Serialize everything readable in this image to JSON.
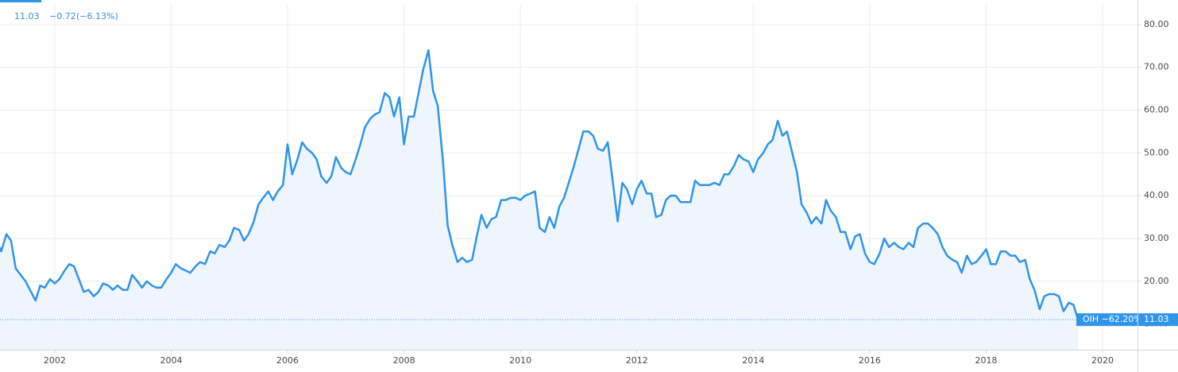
{
  "chart_data": {
    "type": "area",
    "header": {
      "last_price": 11.03,
      "change": "−0.72",
      "change_pct": "(−6.13%)"
    },
    "symbol_label": "OIH −62.20%",
    "color": "#2f95e8",
    "fill_color": "#eef5fd",
    "grid": true,
    "xlim": [
      2001.06,
      2020.6
    ],
    "ylim": [
      4,
      84.8
    ],
    "xticks": [
      2002,
      2004,
      2006,
      2008,
      2010,
      2012,
      2014,
      2016,
      2018,
      2020
    ],
    "yticks": [
      {
        "value": 10,
        "label": "10.00"
      },
      {
        "value": 20,
        "label": "20.00"
      },
      {
        "value": 30,
        "label": "30.00"
      },
      {
        "value": 40,
        "label": "40.00"
      },
      {
        "value": 50,
        "label": "50.00"
      },
      {
        "value": 60,
        "label": "60.00"
      },
      {
        "value": 70,
        "label": "70.00"
      },
      {
        "value": 80,
        "label": "80.00"
      }
    ],
    "x": [
      2001.0,
      2001.08,
      2001.17,
      2001.25,
      2001.33,
      2001.5,
      2001.67,
      2001.75,
      2001.83,
      2001.92,
      2002.0,
      2002.08,
      2002.17,
      2002.25,
      2002.33,
      2002.5,
      2002.58,
      2002.67,
      2002.75,
      2002.83,
      2002.92,
      2003.0,
      2003.08,
      2003.17,
      2003.25,
      2003.33,
      2003.42,
      2003.5,
      2003.58,
      2003.67,
      2003.75,
      2003.83,
      2003.92,
      2004.0,
      2004.08,
      2004.17,
      2004.25,
      2004.33,
      2004.42,
      2004.5,
      2004.58,
      2004.67,
      2004.75,
      2004.83,
      2004.92,
      2005.0,
      2005.08,
      2005.17,
      2005.25,
      2005.33,
      2005.42,
      2005.5,
      2005.58,
      2005.67,
      2005.75,
      2005.83,
      2005.92,
      2006.0,
      2006.08,
      2006.17,
      2006.25,
      2006.33,
      2006.42,
      2006.5,
      2006.58,
      2006.67,
      2006.75,
      2006.83,
      2006.92,
      2007.0,
      2007.08,
      2007.17,
      2007.25,
      2007.33,
      2007.42,
      2007.5,
      2007.58,
      2007.67,
      2007.75,
      2007.83,
      2007.92,
      2008.0,
      2008.08,
      2008.17,
      2008.25,
      2008.33,
      2008.42,
      2008.5,
      2008.58,
      2008.67,
      2008.75,
      2008.83,
      2008.92,
      2009.0,
      2009.08,
      2009.17,
      2009.25,
      2009.33,
      2009.42,
      2009.5,
      2009.58,
      2009.67,
      2009.75,
      2009.83,
      2009.92,
      2010.0,
      2010.08,
      2010.17,
      2010.25,
      2010.33,
      2010.42,
      2010.5,
      2010.58,
      2010.67,
      2010.75,
      2010.83,
      2010.92,
      2011.0,
      2011.08,
      2011.17,
      2011.25,
      2011.33,
      2011.42,
      2011.5,
      2011.58,
      2011.67,
      2011.75,
      2011.83,
      2011.92,
      2012.0,
      2012.08,
      2012.17,
      2012.25,
      2012.33,
      2012.42,
      2012.5,
      2012.58,
      2012.67,
      2012.75,
      2012.83,
      2012.92,
      2013.0,
      2013.08,
      2013.17,
      2013.25,
      2013.33,
      2013.42,
      2013.5,
      2013.58,
      2013.67,
      2013.75,
      2013.83,
      2013.92,
      2014.0,
      2014.08,
      2014.17,
      2014.25,
      2014.33,
      2014.42,
      2014.5,
      2014.58,
      2014.67,
      2014.75,
      2014.83,
      2014.92,
      2015.0,
      2015.08,
      2015.17,
      2015.25,
      2015.33,
      2015.42,
      2015.5,
      2015.58,
      2015.67,
      2015.75,
      2015.83,
      2015.92,
      2016.0,
      2016.08,
      2016.17,
      2016.25,
      2016.33,
      2016.42,
      2016.5,
      2016.58,
      2016.67,
      2016.75,
      2016.83,
      2016.92,
      2017.0,
      2017.08,
      2017.17,
      2017.25,
      2017.33,
      2017.42,
      2017.5,
      2017.58,
      2017.67,
      2017.75,
      2017.83,
      2017.92,
      2018.0,
      2018.08,
      2018.17,
      2018.25,
      2018.33,
      2018.42,
      2018.5,
      2018.58,
      2018.67,
      2018.75,
      2018.83,
      2018.92,
      2019.0,
      2019.08,
      2019.17,
      2019.25,
      2019.33,
      2019.42,
      2019.5,
      2019.58
    ],
    "series": [
      {
        "name": "OIH",
        "values": [
          29.5,
          27,
          31,
          29.5,
          23,
          20,
          15.5,
          19,
          18.5,
          20.5,
          19.5,
          20.5,
          22.5,
          24,
          23.5,
          17.5,
          18,
          16.5,
          17.5,
          19.5,
          19,
          18,
          19,
          18,
          18,
          21.5,
          20,
          18.5,
          20,
          19,
          18.5,
          18.5,
          20.5,
          22,
          24,
          23,
          22.5,
          22,
          23.5,
          24.5,
          24,
          27,
          26.5,
          28.5,
          28,
          29.5,
          32.5,
          32,
          29.5,
          31,
          34,
          38,
          39.5,
          41,
          39,
          41,
          42.5,
          52,
          45,
          48.5,
          52.5,
          51,
          50,
          48.5,
          44.5,
          43,
          44.5,
          49,
          46.5,
          45.5,
          45,
          48.5,
          52,
          56,
          58,
          59,
          59.5,
          64,
          63,
          58.5,
          63,
          52,
          58.5,
          58.5,
          64,
          69.5,
          74,
          64.5,
          61,
          48,
          33,
          28.5,
          24.5,
          25.5,
          24.5,
          25,
          30.5,
          35.5,
          32.5,
          34.5,
          35,
          39,
          39,
          39.5,
          39.5,
          39,
          40,
          40.5,
          41,
          32.5,
          31.5,
          35,
          32.5,
          37.5,
          39.5,
          43,
          47,
          51,
          55,
          55,
          54,
          51,
          50.5,
          52.5,
          44,
          34,
          43,
          41.5,
          38,
          41.5,
          43.5,
          40.5,
          40.5,
          35,
          35.5,
          39,
          40,
          40,
          38.5,
          38.5,
          38.5,
          43.5,
          42.5,
          42.5,
          42.5,
          43,
          42.5,
          45,
          45,
          47,
          49.5,
          48.5,
          48,
          45.5,
          48.5,
          50,
          52,
          53,
          57.5,
          54,
          55,
          50,
          45.5,
          38,
          36,
          33.5,
          35,
          33.5,
          39,
          36.5,
          35,
          31.5,
          31.5,
          27.5,
          30.5,
          31,
          26.5,
          24.5,
          24,
          26.5,
          30,
          28,
          29,
          28,
          27.5,
          29,
          28,
          32.5,
          33.5,
          33.5,
          32.5,
          31,
          28,
          26,
          25,
          24.5,
          22,
          26,
          24,
          24.5,
          26,
          27.5,
          24,
          24,
          27,
          27,
          26,
          26,
          24.5,
          25,
          20.5,
          18,
          13.5,
          16.5,
          17,
          17,
          16.5,
          13,
          15,
          14.5,
          11
        ]
      }
    ]
  }
}
